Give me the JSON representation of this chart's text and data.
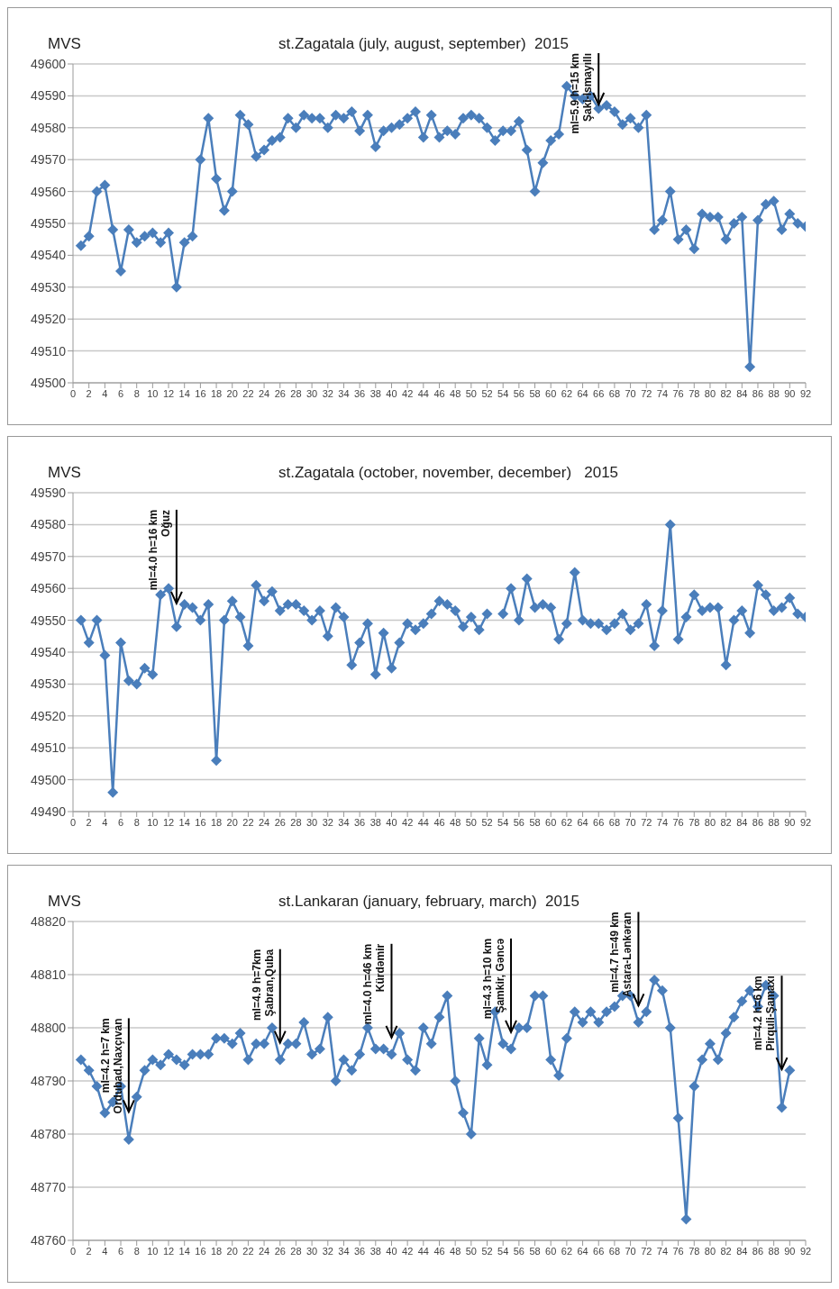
{
  "chart_data": [
    {
      "type": "line",
      "title": "st.Zagatala (july, august, september)  2015",
      "ylabel": "MVS",
      "x": [
        1,
        2,
        3,
        4,
        5,
        6,
        7,
        8,
        9,
        10,
        11,
        12,
        13,
        14,
        15,
        16,
        17,
        18,
        19,
        20,
        21,
        22,
        23,
        24,
        25,
        26,
        27,
        28,
        29,
        30,
        31,
        32,
        33,
        34,
        35,
        36,
        37,
        38,
        39,
        40,
        41,
        42,
        43,
        44,
        45,
        46,
        47,
        48,
        49,
        50,
        51,
        52,
        53,
        54,
        55,
        56,
        57,
        58,
        59,
        60,
        61,
        62,
        63,
        64,
        65,
        66,
        67,
        68,
        69,
        70,
        71,
        72,
        73,
        74,
        75,
        76,
        77,
        78,
        79,
        80,
        81,
        82,
        83,
        84,
        85,
        86,
        87,
        88,
        89,
        90,
        91,
        92
      ],
      "xlim": [
        0,
        92
      ],
      "xticks": [
        0,
        2,
        4,
        6,
        8,
        10,
        12,
        14,
        16,
        18,
        20,
        22,
        24,
        26,
        28,
        30,
        32,
        34,
        36,
        38,
        40,
        42,
        44,
        46,
        48,
        50,
        52,
        54,
        56,
        58,
        60,
        62,
        64,
        66,
        68,
        70,
        72,
        74,
        76,
        78,
        80,
        82,
        84,
        86,
        88,
        90,
        92
      ],
      "ylim": [
        49500,
        49600
      ],
      "yticks": [
        49500,
        49510,
        49520,
        49530,
        49540,
        49550,
        49560,
        49570,
        49580,
        49590,
        49600
      ],
      "grid": "y",
      "marker": "diamond",
      "series": [
        {
          "color": "#4a7ebb",
          "values": [
            49543,
            49546,
            49560,
            49562,
            49548,
            49535,
            49548,
            49544,
            49546,
            49547,
            49544,
            49547,
            49530,
            49544,
            49546,
            49570,
            49583,
            49564,
            49554,
            49560,
            49584,
            49581,
            49571,
            49573,
            49576,
            49577,
            49583,
            49580,
            49584,
            49583,
            49583,
            49580,
            49584,
            49583,
            49585,
            49579,
            49584,
            49574,
            49579,
            49580,
            49581,
            49583,
            49585,
            49577,
            49584,
            49577,
            49579,
            49578,
            49583,
            49584,
            49583,
            49580,
            49576,
            49579,
            49579,
            49582,
            49573,
            49560,
            49569,
            49576,
            49578,
            49593,
            49590,
            49589,
            49590,
            49586,
            49587,
            49585,
            49581,
            49583,
            49580,
            49584,
            49548,
            49551,
            49560,
            49545,
            49548,
            49542,
            49553,
            49552,
            49552,
            49545,
            49550,
            49552,
            49505,
            49551,
            49556,
            49557,
            49548,
            49553,
            49550,
            49549
          ]
        }
      ],
      "annotations": [
        {
          "text": "ml=5.9  h=15 km\nŞaki-Ismayıllı",
          "x": 66,
          "y": 49587
        }
      ]
    },
    {
      "type": "line",
      "title": "st.Zagatala (october, november, december)   2015",
      "ylabel": "MVS",
      "x": [
        1,
        2,
        3,
        4,
        5,
        6,
        7,
        8,
        9,
        10,
        11,
        12,
        13,
        14,
        15,
        16,
        17,
        18,
        19,
        20,
        21,
        22,
        23,
        24,
        25,
        26,
        27,
        28,
        29,
        30,
        31,
        32,
        33,
        34,
        35,
        36,
        37,
        38,
        39,
        40,
        41,
        42,
        43,
        44,
        45,
        46,
        47,
        48,
        49,
        50,
        51,
        52,
        53,
        54,
        55,
        56,
        57,
        58,
        59,
        60,
        61,
        62,
        63,
        64,
        65,
        66,
        67,
        68,
        69,
        70,
        71,
        72,
        73,
        74,
        75,
        76,
        77,
        78,
        79,
        80,
        81,
        82,
        83,
        84,
        85,
        86,
        87,
        88,
        89,
        90,
        91,
        92
      ],
      "xlim": [
        0,
        92
      ],
      "xticks": [
        0,
        2,
        4,
        6,
        8,
        10,
        12,
        14,
        16,
        18,
        20,
        22,
        24,
        26,
        28,
        30,
        32,
        34,
        36,
        38,
        40,
        42,
        44,
        46,
        48,
        50,
        52,
        54,
        56,
        58,
        60,
        62,
        64,
        66,
        68,
        70,
        72,
        74,
        76,
        78,
        80,
        82,
        84,
        86,
        88,
        90,
        92
      ],
      "ylim": [
        49490,
        49590
      ],
      "yticks": [
        49490,
        49500,
        49510,
        49520,
        49530,
        49540,
        49550,
        49560,
        49570,
        49580,
        49590
      ],
      "grid": "y",
      "marker": "diamond",
      "series": [
        {
          "color": "#4a7ebb",
          "values": [
            49550,
            49543,
            49550,
            49539,
            49496,
            49543,
            49531,
            49530,
            49535,
            49533,
            49558,
            49560,
            49548,
            49555,
            49554,
            49550,
            49555,
            49506,
            49550,
            49556,
            49551,
            49542,
            49561,
            49556,
            49559,
            49553,
            49555,
            49555,
            49553,
            49550,
            49553,
            49545,
            49554,
            49551,
            49536,
            49543,
            49549,
            49533,
            49546,
            49535,
            49543,
            49549,
            49547,
            49549,
            49552,
            49556,
            49555,
            49553,
            49548,
            49551,
            49547,
            49552,
            null,
            49552,
            49560,
            49550,
            49563,
            49554,
            49555,
            49554,
            49544,
            49549,
            49565,
            49550,
            49549,
            49549,
            49547,
            49549,
            49552,
            49547,
            49549,
            49555,
            49542,
            49553,
            49580,
            49544,
            49551,
            49558,
            49553,
            49554,
            49554,
            49536,
            49550,
            49553,
            49546,
            49561,
            49558,
            49553,
            49554,
            49557,
            49552,
            49551
          ]
        }
      ],
      "annotations": [
        {
          "text": "ml=4.0  h=16 km\nOğuz",
          "x": 13,
          "y": 49555
        }
      ]
    },
    {
      "type": "line",
      "title": "st.Lankaran (january, february, march)  2015",
      "ylabel": "MVS",
      "x": [
        1,
        2,
        3,
        4,
        5,
        6,
        7,
        8,
        9,
        10,
        11,
        12,
        13,
        14,
        15,
        16,
        17,
        18,
        19,
        20,
        21,
        22,
        23,
        24,
        25,
        26,
        27,
        28,
        29,
        30,
        31,
        32,
        33,
        34,
        35,
        36,
        37,
        38,
        39,
        40,
        41,
        42,
        43,
        44,
        45,
        46,
        47,
        48,
        49,
        50,
        51,
        52,
        53,
        54,
        55,
        56,
        57,
        58,
        59,
        60,
        61,
        62,
        63,
        64,
        65,
        66,
        67,
        68,
        69,
        70,
        71,
        72,
        73,
        74,
        75,
        76,
        77,
        78,
        79,
        80,
        81,
        82,
        83,
        84,
        85,
        86,
        87,
        88,
        89,
        90
      ],
      "xlim": [
        0,
        92
      ],
      "xticks": [
        0,
        2,
        4,
        6,
        8,
        10,
        12,
        14,
        16,
        18,
        20,
        22,
        24,
        26,
        28,
        30,
        32,
        34,
        36,
        38,
        40,
        42,
        44,
        46,
        48,
        50,
        52,
        54,
        56,
        58,
        60,
        62,
        64,
        66,
        68,
        70,
        72,
        74,
        76,
        78,
        80,
        82,
        84,
        86,
        88,
        90,
        92
      ],
      "ylim": [
        48760,
        48820
      ],
      "yticks": [
        48760,
        48770,
        48780,
        48790,
        48800,
        48810,
        48820
      ],
      "grid": "y",
      "marker": "diamond",
      "series": [
        {
          "color": "#4a7ebb",
          "values": [
            48794,
            48792,
            48789,
            48784,
            48786,
            48789,
            48779,
            48787,
            48792,
            48794,
            48793,
            48795,
            48794,
            48793,
            48795,
            48795,
            48795,
            48798,
            48798,
            48797,
            48799,
            48794,
            48797,
            48797,
            48800,
            48794,
            48797,
            48797,
            48801,
            48795,
            48796,
            48802,
            48790,
            48794,
            48792,
            48795,
            48800,
            48796,
            48796,
            48795,
            48799,
            48794,
            48792,
            48800,
            48797,
            48802,
            48806,
            48790,
            48784,
            48780,
            48798,
            48793,
            48803,
            48797,
            48796,
            48800,
            48800,
            48806,
            48806,
            48794,
            48791,
            48798,
            48803,
            48801,
            48803,
            48801,
            48803,
            48804,
            48806,
            48806,
            48801,
            48803,
            48809,
            48807,
            48800,
            48783,
            48764,
            48789,
            48794,
            48797,
            48794,
            48799,
            48802,
            48805,
            48807,
            48804,
            48808,
            48806,
            48785,
            48792
          ]
        }
      ],
      "annotations": [
        {
          "text": "ml=4.2   h=7 km\nOrdubad,Naxçıvan",
          "x": 7,
          "y": 48784
        },
        {
          "text": "ml=4.9  h=7km\nŞabran,Quba",
          "x": 26,
          "y": 48797
        },
        {
          "text": "ml=4.0  h=46 km\nKürdəmir",
          "x": 40,
          "y": 48798
        },
        {
          "text": "ml=4.3  h=10 km\nŞamkir, Gəncə",
          "x": 55,
          "y": 48799
        },
        {
          "text": "ml=4.7  h=49 km\nAstara-Lənkəran",
          "x": 71,
          "y": 48804
        },
        {
          "text": "ml=4.2  h=6 km\nPirquli-Şamaxı",
          "x": 89,
          "y": 48792
        }
      ]
    }
  ]
}
